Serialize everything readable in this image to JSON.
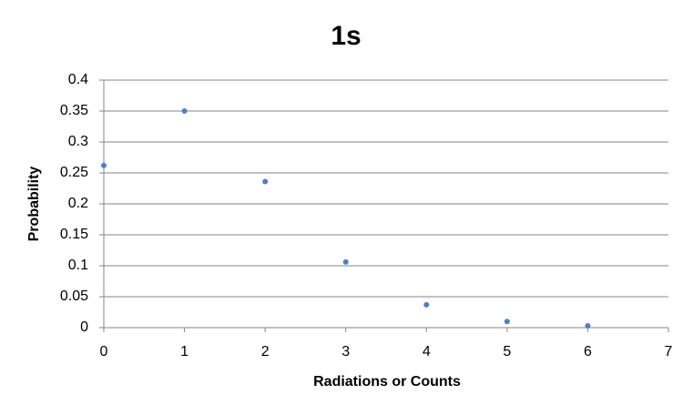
{
  "chart_data": {
    "type": "scatter",
    "title": "1s",
    "x_label": "Radiations  or Counts",
    "y_label": "Probability",
    "series": [
      {
        "name": "Probability",
        "color": "#4f81bd",
        "x": [
          0,
          1,
          2,
          3,
          4,
          5,
          6
        ],
        "values": [
          0.262,
          0.35,
          0.236,
          0.106,
          0.037,
          0.01,
          0.003
        ]
      }
    ],
    "xlim": [
      0,
      7
    ],
    "xticks": [
      0,
      1,
      2,
      3,
      4,
      5,
      6,
      7
    ],
    "ylim": [
      0,
      0.4
    ],
    "yticks": [
      0,
      0.05,
      0.1,
      0.15,
      0.2,
      0.25,
      0.3,
      0.35,
      0.4
    ],
    "grid": true
  }
}
